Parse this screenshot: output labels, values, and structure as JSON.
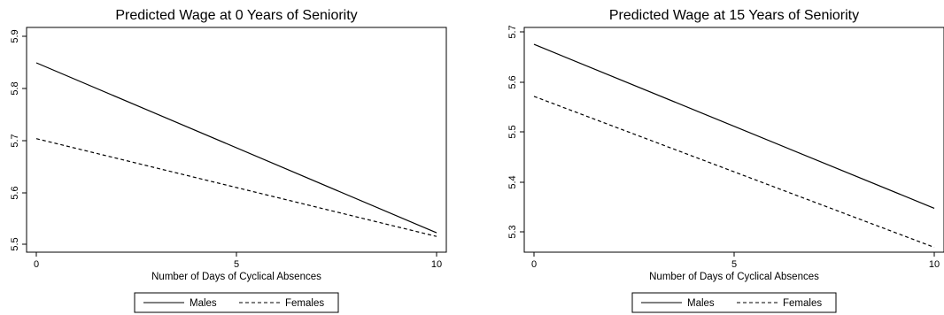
{
  "chart_data": [
    {
      "type": "line",
      "title": "Predicted Wage at 0 Years of Seniority",
      "xlabel": "Number of Days of Cyclical Absences",
      "ylabel": "",
      "xlim": [
        0,
        10
      ],
      "ylim": [
        5.5,
        5.9
      ],
      "xticks": [
        "0",
        "5",
        "10"
      ],
      "yticks": [
        "5.5",
        "5.6",
        "5.7",
        "5.8",
        "5.9"
      ],
      "grid": false,
      "legend_position": "bottom",
      "series": [
        {
          "name": "Males",
          "style": "solid",
          "x": [
            0,
            10
          ],
          "y": [
            5.849,
            5.522
          ]
        },
        {
          "name": "Females",
          "style": "dashed",
          "x": [
            0,
            10
          ],
          "y": [
            5.703,
            5.515
          ]
        }
      ]
    },
    {
      "type": "line",
      "title": "Predicted Wage at 15 Years of Seniority",
      "xlabel": "Number of Days of Cyclical Absences",
      "ylabel": "",
      "xlim": [
        0,
        10
      ],
      "ylim": [
        5.3,
        5.7
      ],
      "xticks": [
        "0",
        "5",
        "10"
      ],
      "yticks": [
        "5.3",
        "5.4",
        "5.5",
        "5.6",
        "5.7"
      ],
      "grid": false,
      "legend_position": "bottom",
      "series": [
        {
          "name": "Males",
          "style": "solid",
          "x": [
            0,
            10
          ],
          "y": [
            5.675,
            5.347
          ]
        },
        {
          "name": "Females",
          "style": "dashed",
          "x": [
            0,
            10
          ],
          "y": [
            5.571,
            5.269
          ]
        }
      ]
    }
  ]
}
